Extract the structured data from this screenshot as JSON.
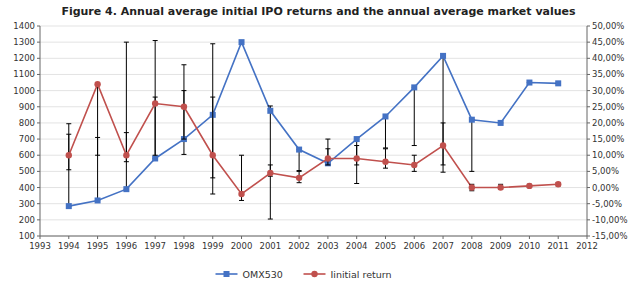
{
  "chart_data": {
    "type": "line",
    "title": "Figure 4. Annual average initial IPO returns and the annual average market values",
    "x": [
      1994,
      1995,
      1996,
      1997,
      1998,
      1999,
      2000,
      2001,
      2002,
      2003,
      2004,
      2005,
      2006,
      2007,
      2008,
      2009,
      2010,
      2011
    ],
    "xlim": [
      1993,
      2012
    ],
    "xticks": [
      1993,
      1994,
      1995,
      1996,
      1997,
      1998,
      1999,
      2000,
      2001,
      2002,
      2003,
      2004,
      2005,
      2006,
      2007,
      2008,
      2009,
      2010,
      2011,
      2012
    ],
    "ylim": [
      100,
      1400
    ],
    "yticks": [
      100,
      200,
      300,
      400,
      500,
      600,
      700,
      800,
      900,
      1000,
      1100,
      1200,
      1300,
      1400
    ],
    "y2lim": [
      -0.15,
      0.5
    ],
    "y2ticks": [
      {
        "value": -0.15,
        "label": "-15,00%"
      },
      {
        "value": -0.1,
        "label": "-10,00%"
      },
      {
        "value": -0.05,
        "label": "-5,00%"
      },
      {
        "value": 0.0,
        "label": "0,00%"
      },
      {
        "value": 0.05,
        "label": "5,00%"
      },
      {
        "value": 0.1,
        "label": "10,00%"
      },
      {
        "value": 0.15,
        "label": "15,00%"
      },
      {
        "value": 0.2,
        "label": "20,00%"
      },
      {
        "value": 0.25,
        "label": "25,00%"
      },
      {
        "value": 0.3,
        "label": "30,00%"
      },
      {
        "value": 0.35,
        "label": "35,00%"
      },
      {
        "value": 0.4,
        "label": "40,00%"
      },
      {
        "value": 0.45,
        "label": "45,00%"
      },
      {
        "value": 0.5,
        "label": "50,00%"
      }
    ],
    "grid": true,
    "legend": "bottom",
    "series": [
      {
        "name": "OMX530",
        "color": "#4472C4",
        "marker": "square",
        "values": [
          285,
          320,
          390,
          580,
          700,
          850,
          1300,
          875,
          635,
          550,
          700,
          840,
          1020,
          1215,
          820,
          800,
          1050,
          1045
        ],
        "error_neg": [
          0,
          0,
          0,
          0,
          95,
          490,
          0,
          670,
          130,
          0,
          275,
          195,
          360,
          720,
          320,
          0,
          0,
          0
        ],
        "error_pos": [
          510,
          390,
          910,
          730,
          460,
          440,
          0,
          30,
          0,
          150,
          0,
          0,
          0,
          0,
          0,
          0,
          0,
          0
        ]
      },
      {
        "name": "Iinitial return",
        "color": "#C0504D",
        "marker": "circle",
        "axis": "y2",
        "values": [
          0.1,
          0.32,
          0.1,
          0.26,
          0.25,
          0.1,
          -0.02,
          0.045,
          0.03,
          0.09,
          0.09,
          0.08,
          0.07,
          0.13,
          0.0,
          0.0,
          0.005,
          0.01
        ],
        "error_neg": [
          0.045,
          0.22,
          0.02,
          0.16,
          0.1,
          0.07,
          0.02,
          0.01,
          0.015,
          0.02,
          0.02,
          0.02,
          0.02,
          0.06,
          0.01,
          0.005,
          0.005,
          0.005
        ],
        "error_pos": [
          0.065,
          0.0,
          0.07,
          0.02,
          0.05,
          0.18,
          0.12,
          0.025,
          0.02,
          0.03,
          0.04,
          0.04,
          0.03,
          0.07,
          0.01,
          0.01,
          0.005,
          0.005
        ]
      }
    ]
  }
}
